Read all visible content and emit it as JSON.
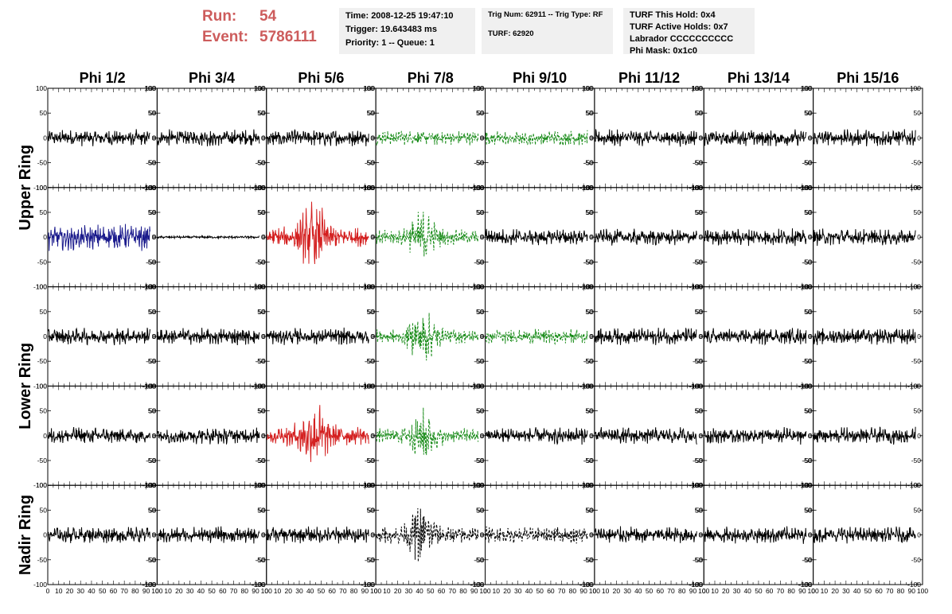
{
  "header": {
    "run_label": "Run:",
    "run_value": "54",
    "event_label": "Event:",
    "event_value": "5786111",
    "time": "Time: 2008-12-25 19:47:10",
    "trigger": "Trigger: 19.643483 ms",
    "priority": "Priority: 1 -- Queue: 1",
    "trig_num": "Trig Num: 62911 -- Trig Type: RF",
    "turf": "TURF: 62920",
    "turf_hold": "TURF This Hold: 0x4",
    "turf_active": "TURF Active Holds: 0x7",
    "labrador": "Labrador CCCCCCCCCC",
    "phi_mask": "Phi Mask: 0x1c0"
  },
  "colors": {
    "run_text": "#cd5c5c",
    "info_bg": "#f0f0f0",
    "trace_default": "#000000",
    "trace_blue": "#1a1a8c",
    "trace_red": "#d42020",
    "trace_green": "#1a8c1a"
  },
  "chart_data": {
    "type": "line",
    "columns": [
      "Phi 1/2",
      "Phi 3/4",
      "Phi 5/6",
      "Phi 7/8",
      "Phi 9/10",
      "Phi 11/12",
      "Phi 13/14",
      "Phi 15/16"
    ],
    "ring_labels": [
      {
        "label": "Upper Ring",
        "rows": [
          0,
          1
        ]
      },
      {
        "label": "Lower Ring",
        "rows": [
          2,
          3
        ]
      },
      {
        "label": "Nadir Ring",
        "rows": [
          4,
          4
        ]
      }
    ],
    "xlim": [
      0,
      100
    ],
    "ylim": [
      -100,
      100
    ],
    "x_ticks": [
      "0",
      "10",
      "20",
      "30",
      "40",
      "50",
      "60",
      "70",
      "80",
      "90",
      "100"
    ],
    "y_ticks": [
      "100",
      "50",
      "0",
      "-50",
      "-100"
    ],
    "grid": false,
    "trace_styles": [
      [
        "black",
        "black",
        "black",
        "green-dashed",
        "green-dashed",
        "black",
        "black",
        "black"
      ],
      [
        "blue",
        "black-flat",
        "red-burst",
        "green-dashed-burst",
        "black",
        "black",
        "black",
        "black"
      ],
      [
        "black",
        "black",
        "black",
        "green-dashed-burst",
        "green-dashed",
        "black",
        "black",
        "black"
      ],
      [
        "black",
        "black",
        "red-burst",
        "green-dashed-burst",
        "black",
        "black",
        "black",
        "black"
      ],
      [
        "black",
        "black",
        "black",
        "black-dashed-burst",
        "black-dashed",
        "black",
        "black",
        "black"
      ]
    ]
  }
}
